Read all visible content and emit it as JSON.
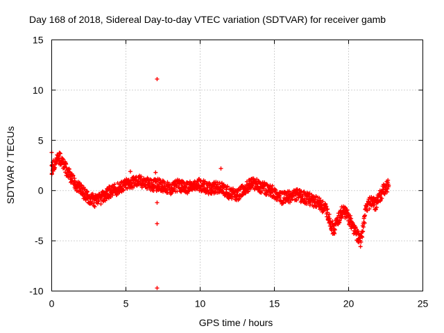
{
  "chart_data": {
    "type": "scatter",
    "title": "Day 168 of 2018, Sidereal Day-to-day VTEC variation (SDTVAR) for receiver gamb",
    "xlabel": "GPS time / hours",
    "ylabel": "SDTVAR / TECUs",
    "xlim": [
      0,
      25
    ],
    "ylim": [
      -10,
      15
    ],
    "xticks": [
      0,
      5,
      10,
      15,
      20,
      25
    ],
    "yticks": [
      -10,
      -5,
      0,
      5,
      10,
      15
    ],
    "xtick_labels": [
      "0",
      "5",
      "10",
      "15",
      "20",
      "25"
    ],
    "ytick_labels": [
      "-10",
      "-5",
      "0",
      "5",
      "10",
      "15"
    ],
    "grid": true,
    "marker": "plus",
    "series": [
      {
        "name": "SDTVAR",
        "color": "#ff0000",
        "trend": [
          [
            0.0,
            2.0
          ],
          [
            0.1,
            2.5
          ],
          [
            0.3,
            3.0
          ],
          [
            0.5,
            3.3
          ],
          [
            0.7,
            2.8
          ],
          [
            0.9,
            2.3
          ],
          [
            1.1,
            1.8
          ],
          [
            1.4,
            1.0
          ],
          [
            1.8,
            0.3
          ],
          [
            2.2,
            -0.3
          ],
          [
            2.6,
            -0.8
          ],
          [
            3.0,
            -1.1
          ],
          [
            3.4,
            -0.7
          ],
          [
            3.8,
            -0.2
          ],
          [
            4.3,
            0.1
          ],
          [
            4.8,
            0.5
          ],
          [
            5.3,
            0.8
          ],
          [
            5.8,
            1.0
          ],
          [
            6.3,
            0.8
          ],
          [
            6.8,
            0.5
          ],
          [
            7.2,
            0.6
          ],
          [
            7.6,
            0.4
          ],
          [
            8.0,
            0.2
          ],
          [
            8.5,
            0.5
          ],
          [
            9.0,
            0.3
          ],
          [
            9.5,
            0.4
          ],
          [
            10.0,
            0.6
          ],
          [
            10.5,
            0.2
          ],
          [
            11.0,
            0.3
          ],
          [
            11.5,
            0.2
          ],
          [
            12.0,
            -0.3
          ],
          [
            12.5,
            -0.5
          ],
          [
            13.0,
            0.2
          ],
          [
            13.5,
            0.8
          ],
          [
            14.0,
            0.4
          ],
          [
            14.5,
            0.1
          ],
          [
            15.0,
            -0.2
          ],
          [
            15.5,
            -0.8
          ],
          [
            16.0,
            -0.6
          ],
          [
            16.5,
            -0.4
          ],
          [
            17.0,
            -0.7
          ],
          [
            17.5,
            -0.9
          ],
          [
            18.0,
            -1.3
          ],
          [
            18.5,
            -2.0
          ],
          [
            18.8,
            -3.2
          ],
          [
            19.0,
            -4.0
          ],
          [
            19.3,
            -2.8
          ],
          [
            19.6,
            -2.0
          ],
          [
            19.9,
            -2.4
          ],
          [
            20.2,
            -3.3
          ],
          [
            20.5,
            -4.2
          ],
          [
            20.8,
            -5.0
          ],
          [
            21.0,
            -3.5
          ],
          [
            21.2,
            -1.6
          ],
          [
            21.5,
            -1.1
          ],
          [
            21.8,
            -1.4
          ],
          [
            22.1,
            -0.6
          ],
          [
            22.4,
            0.2
          ],
          [
            22.7,
            0.5
          ]
        ],
        "outliers": [
          [
            7.1,
            11.1
          ],
          [
            7.1,
            -9.7
          ],
          [
            7.1,
            -3.3
          ],
          [
            7.1,
            -1.2
          ],
          [
            7.0,
            1.8
          ],
          [
            0.0,
            3.8
          ],
          [
            11.4,
            2.2
          ],
          [
            5.3,
            1.9
          ]
        ]
      }
    ]
  }
}
